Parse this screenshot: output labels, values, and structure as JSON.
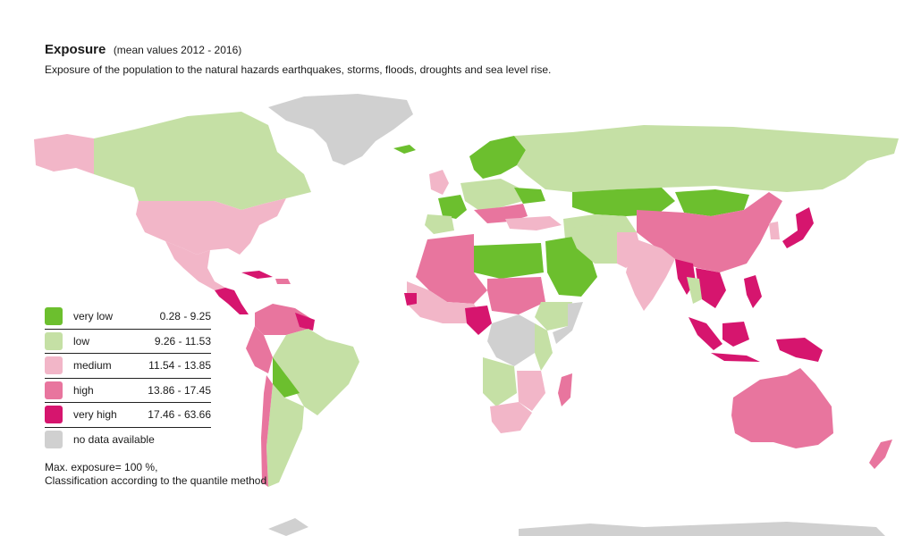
{
  "header": {
    "title": "Exposure",
    "title_note": "(mean values 2012 - 2016)",
    "subtitle": "Exposure of the population to the natural hazards earthquakes, storms, floods, droughts and sea level rise."
  },
  "legend": [
    {
      "label": "very low",
      "range": "0.28 - 9.25",
      "color": "#6cbf2e"
    },
    {
      "label": "low",
      "range": "9.26 - 11.53",
      "color": "#c5e0a5"
    },
    {
      "label": "medium",
      "range": "11.54 - 13.85",
      "color": "#f2b6c8"
    },
    {
      "label": "high",
      "range": "13.86 - 17.45",
      "color": "#e8759e"
    },
    {
      "label": "very high",
      "range": "17.46 - 63.66",
      "color": "#d6156e"
    },
    {
      "label": "no data available",
      "range": "",
      "color": "#d0d0d0"
    }
  ],
  "footnote": {
    "line1": "Max. exposure= 100 %,",
    "line2": "Classification according to the quantile method"
  }
}
